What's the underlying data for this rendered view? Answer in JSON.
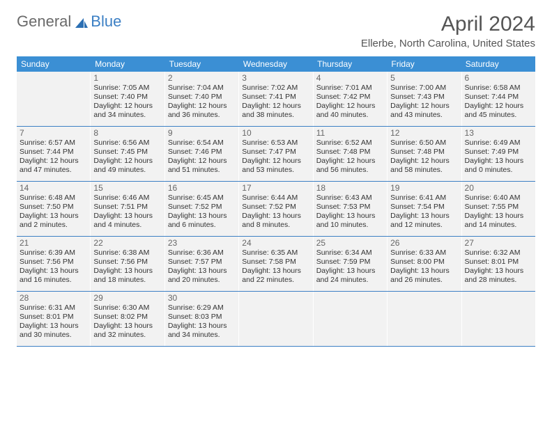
{
  "logo": {
    "text1": "General",
    "text2": "Blue"
  },
  "title": "April 2024",
  "location": "Ellerbe, North Carolina, United States",
  "colors": {
    "header_bg": "#3b8fd4",
    "header_text": "#ffffff",
    "cell_bg": "#f2f2f2",
    "divider": "#3b7fc4",
    "logo_gray": "#6a6a6a",
    "logo_blue": "#3b7fc4",
    "title_color": "#555555",
    "body_text": "#333333"
  },
  "day_headers": [
    "Sunday",
    "Monday",
    "Tuesday",
    "Wednesday",
    "Thursday",
    "Friday",
    "Saturday"
  ],
  "weeks": [
    [
      {
        "empty": true
      },
      {
        "num": "1",
        "sunrise": "Sunrise: 7:05 AM",
        "sunset": "Sunset: 7:40 PM",
        "daylight1": "Daylight: 12 hours",
        "daylight2": "and 34 minutes."
      },
      {
        "num": "2",
        "sunrise": "Sunrise: 7:04 AM",
        "sunset": "Sunset: 7:40 PM",
        "daylight1": "Daylight: 12 hours",
        "daylight2": "and 36 minutes."
      },
      {
        "num": "3",
        "sunrise": "Sunrise: 7:02 AM",
        "sunset": "Sunset: 7:41 PM",
        "daylight1": "Daylight: 12 hours",
        "daylight2": "and 38 minutes."
      },
      {
        "num": "4",
        "sunrise": "Sunrise: 7:01 AM",
        "sunset": "Sunset: 7:42 PM",
        "daylight1": "Daylight: 12 hours",
        "daylight2": "and 40 minutes."
      },
      {
        "num": "5",
        "sunrise": "Sunrise: 7:00 AM",
        "sunset": "Sunset: 7:43 PM",
        "daylight1": "Daylight: 12 hours",
        "daylight2": "and 43 minutes."
      },
      {
        "num": "6",
        "sunrise": "Sunrise: 6:58 AM",
        "sunset": "Sunset: 7:44 PM",
        "daylight1": "Daylight: 12 hours",
        "daylight2": "and 45 minutes."
      }
    ],
    [
      {
        "num": "7",
        "sunrise": "Sunrise: 6:57 AM",
        "sunset": "Sunset: 7:44 PM",
        "daylight1": "Daylight: 12 hours",
        "daylight2": "and 47 minutes."
      },
      {
        "num": "8",
        "sunrise": "Sunrise: 6:56 AM",
        "sunset": "Sunset: 7:45 PM",
        "daylight1": "Daylight: 12 hours",
        "daylight2": "and 49 minutes."
      },
      {
        "num": "9",
        "sunrise": "Sunrise: 6:54 AM",
        "sunset": "Sunset: 7:46 PM",
        "daylight1": "Daylight: 12 hours",
        "daylight2": "and 51 minutes."
      },
      {
        "num": "10",
        "sunrise": "Sunrise: 6:53 AM",
        "sunset": "Sunset: 7:47 PM",
        "daylight1": "Daylight: 12 hours",
        "daylight2": "and 53 minutes."
      },
      {
        "num": "11",
        "sunrise": "Sunrise: 6:52 AM",
        "sunset": "Sunset: 7:48 PM",
        "daylight1": "Daylight: 12 hours",
        "daylight2": "and 56 minutes."
      },
      {
        "num": "12",
        "sunrise": "Sunrise: 6:50 AM",
        "sunset": "Sunset: 7:48 PM",
        "daylight1": "Daylight: 12 hours",
        "daylight2": "and 58 minutes."
      },
      {
        "num": "13",
        "sunrise": "Sunrise: 6:49 AM",
        "sunset": "Sunset: 7:49 PM",
        "daylight1": "Daylight: 13 hours",
        "daylight2": "and 0 minutes."
      }
    ],
    [
      {
        "num": "14",
        "sunrise": "Sunrise: 6:48 AM",
        "sunset": "Sunset: 7:50 PM",
        "daylight1": "Daylight: 13 hours",
        "daylight2": "and 2 minutes."
      },
      {
        "num": "15",
        "sunrise": "Sunrise: 6:46 AM",
        "sunset": "Sunset: 7:51 PM",
        "daylight1": "Daylight: 13 hours",
        "daylight2": "and 4 minutes."
      },
      {
        "num": "16",
        "sunrise": "Sunrise: 6:45 AM",
        "sunset": "Sunset: 7:52 PM",
        "daylight1": "Daylight: 13 hours",
        "daylight2": "and 6 minutes."
      },
      {
        "num": "17",
        "sunrise": "Sunrise: 6:44 AM",
        "sunset": "Sunset: 7:52 PM",
        "daylight1": "Daylight: 13 hours",
        "daylight2": "and 8 minutes."
      },
      {
        "num": "18",
        "sunrise": "Sunrise: 6:43 AM",
        "sunset": "Sunset: 7:53 PM",
        "daylight1": "Daylight: 13 hours",
        "daylight2": "and 10 minutes."
      },
      {
        "num": "19",
        "sunrise": "Sunrise: 6:41 AM",
        "sunset": "Sunset: 7:54 PM",
        "daylight1": "Daylight: 13 hours",
        "daylight2": "and 12 minutes."
      },
      {
        "num": "20",
        "sunrise": "Sunrise: 6:40 AM",
        "sunset": "Sunset: 7:55 PM",
        "daylight1": "Daylight: 13 hours",
        "daylight2": "and 14 minutes."
      }
    ],
    [
      {
        "num": "21",
        "sunrise": "Sunrise: 6:39 AM",
        "sunset": "Sunset: 7:56 PM",
        "daylight1": "Daylight: 13 hours",
        "daylight2": "and 16 minutes."
      },
      {
        "num": "22",
        "sunrise": "Sunrise: 6:38 AM",
        "sunset": "Sunset: 7:56 PM",
        "daylight1": "Daylight: 13 hours",
        "daylight2": "and 18 minutes."
      },
      {
        "num": "23",
        "sunrise": "Sunrise: 6:36 AM",
        "sunset": "Sunset: 7:57 PM",
        "daylight1": "Daylight: 13 hours",
        "daylight2": "and 20 minutes."
      },
      {
        "num": "24",
        "sunrise": "Sunrise: 6:35 AM",
        "sunset": "Sunset: 7:58 PM",
        "daylight1": "Daylight: 13 hours",
        "daylight2": "and 22 minutes."
      },
      {
        "num": "25",
        "sunrise": "Sunrise: 6:34 AM",
        "sunset": "Sunset: 7:59 PM",
        "daylight1": "Daylight: 13 hours",
        "daylight2": "and 24 minutes."
      },
      {
        "num": "26",
        "sunrise": "Sunrise: 6:33 AM",
        "sunset": "Sunset: 8:00 PM",
        "daylight1": "Daylight: 13 hours",
        "daylight2": "and 26 minutes."
      },
      {
        "num": "27",
        "sunrise": "Sunrise: 6:32 AM",
        "sunset": "Sunset: 8:01 PM",
        "daylight1": "Daylight: 13 hours",
        "daylight2": "and 28 minutes."
      }
    ],
    [
      {
        "num": "28",
        "sunrise": "Sunrise: 6:31 AM",
        "sunset": "Sunset: 8:01 PM",
        "daylight1": "Daylight: 13 hours",
        "daylight2": "and 30 minutes."
      },
      {
        "num": "29",
        "sunrise": "Sunrise: 6:30 AM",
        "sunset": "Sunset: 8:02 PM",
        "daylight1": "Daylight: 13 hours",
        "daylight2": "and 32 minutes."
      },
      {
        "num": "30",
        "sunrise": "Sunrise: 6:29 AM",
        "sunset": "Sunset: 8:03 PM",
        "daylight1": "Daylight: 13 hours",
        "daylight2": "and 34 minutes."
      },
      {
        "empty": true
      },
      {
        "empty": true
      },
      {
        "empty": true
      },
      {
        "empty": true
      }
    ]
  ]
}
